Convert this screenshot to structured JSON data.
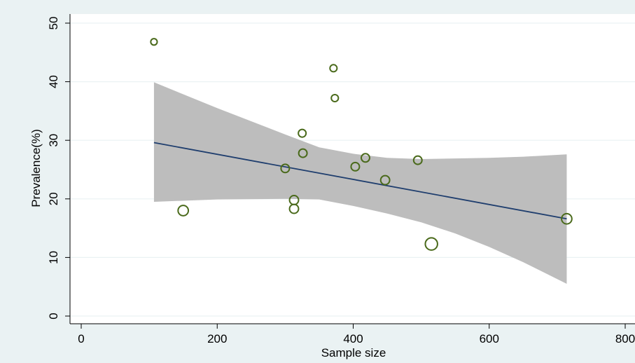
{
  "chart_data": {
    "type": "scatter",
    "title": "",
    "xlabel": "Sample size",
    "ylabel": "Prevalence(%)",
    "xlim": [
      0,
      800
    ],
    "ylim": [
      0,
      50
    ],
    "x_ticks": [
      "0",
      "200",
      "400",
      "600",
      "800"
    ],
    "y_ticks": [
      "0",
      "10",
      "20",
      "30",
      "40",
      "50"
    ],
    "grid": "horizontal",
    "points": [
      {
        "x": 107,
        "y": 46.8,
        "weight": 1.0
      },
      {
        "x": 150,
        "y": 18.0,
        "weight": 1.6
      },
      {
        "x": 300,
        "y": 25.2,
        "weight": 1.3
      },
      {
        "x": 313,
        "y": 19.8,
        "weight": 1.4
      },
      {
        "x": 313,
        "y": 18.3,
        "weight": 1.4
      },
      {
        "x": 325,
        "y": 31.2,
        "weight": 1.2
      },
      {
        "x": 326,
        "y": 27.8,
        "weight": 1.3
      },
      {
        "x": 371,
        "y": 42.3,
        "weight": 1.1
      },
      {
        "x": 373,
        "y": 37.2,
        "weight": 1.1
      },
      {
        "x": 403,
        "y": 25.5,
        "weight": 1.3
      },
      {
        "x": 418,
        "y": 27.0,
        "weight": 1.3
      },
      {
        "x": 447,
        "y": 23.2,
        "weight": 1.4
      },
      {
        "x": 495,
        "y": 26.6,
        "weight": 1.3
      },
      {
        "x": 515,
        "y": 12.3,
        "weight": 1.9
      },
      {
        "x": 714,
        "y": 16.6,
        "weight": 1.6
      }
    ],
    "fit_line": {
      "x": [
        107,
        714
      ],
      "y": [
        29.6,
        16.6
      ],
      "color": "#1f3e6e"
    },
    "confidence_band": {
      "x": [
        107,
        200,
        300,
        350,
        400,
        450,
        500,
        550,
        600,
        650,
        714
      ],
      "upper": [
        39.9,
        35.5,
        31.0,
        28.8,
        27.7,
        27.0,
        26.8,
        26.9,
        27.0,
        27.2,
        27.6
      ],
      "lower": [
        19.5,
        19.9,
        20.0,
        19.9,
        18.8,
        17.5,
        16.0,
        14.1,
        11.8,
        9.2,
        5.5
      ],
      "color": "#bdbdbd"
    },
    "marker_color": "#4a6a1b",
    "plot_background": "#ffffff",
    "outer_background": "#eaf2f3"
  }
}
